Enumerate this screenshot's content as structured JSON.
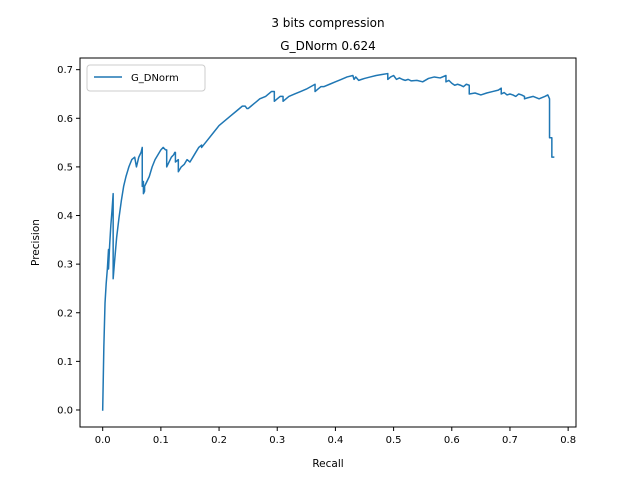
{
  "chart_data": {
    "type": "line",
    "title": [
      "3 bits compression",
      "G_DNorm 0.624"
    ],
    "xlabel": "Recall",
    "ylabel": "Precision",
    "xlim": [
      -0.039,
      0.8135
    ],
    "ylim": [
      -0.035,
      0.724
    ],
    "xticks": [
      0.0,
      0.1,
      0.2,
      0.3,
      0.4,
      0.5,
      0.6,
      0.7,
      0.8
    ],
    "xtick_labels": [
      "0.0",
      "0.1",
      "0.2",
      "0.3",
      "0.4",
      "0.5",
      "0.6",
      "0.7",
      "0.8"
    ],
    "yticks": [
      0.0,
      0.1,
      0.2,
      0.3,
      0.4,
      0.5,
      0.6,
      0.7
    ],
    "ytick_labels": [
      "0.0",
      "0.1",
      "0.2",
      "0.3",
      "0.4",
      "0.5",
      "0.6",
      "0.7"
    ],
    "grid": false,
    "legend": {
      "placement": "top-left",
      "entries": [
        "G_DNorm"
      ]
    },
    "series": [
      {
        "name": "G_DNorm",
        "color": "#1f77b4",
        "x": [
          0.0,
          0.002,
          0.004,
          0.006,
          0.008,
          0.01,
          0.01,
          0.012,
          0.014,
          0.016,
          0.018,
          0.018,
          0.02,
          0.024,
          0.028,
          0.032,
          0.036,
          0.04,
          0.045,
          0.05,
          0.055,
          0.058,
          0.06,
          0.062,
          0.064,
          0.066,
          0.068,
          0.068,
          0.07,
          0.07,
          0.072,
          0.072,
          0.076,
          0.08,
          0.085,
          0.09,
          0.095,
          0.1,
          0.104,
          0.108,
          0.11,
          0.11,
          0.114,
          0.118,
          0.122,
          0.124,
          0.125,
          0.125,
          0.13,
          0.13,
          0.135,
          0.14,
          0.145,
          0.15,
          0.155,
          0.16,
          0.165,
          0.17,
          0.17,
          0.18,
          0.19,
          0.2,
          0.21,
          0.22,
          0.23,
          0.24,
          0.245,
          0.248,
          0.25,
          0.255,
          0.26,
          0.265,
          0.27,
          0.28,
          0.29,
          0.295,
          0.295,
          0.3,
          0.305,
          0.31,
          0.31,
          0.32,
          0.33,
          0.34,
          0.35,
          0.365,
          0.365,
          0.37,
          0.375,
          0.38,
          0.39,
          0.4,
          0.41,
          0.42,
          0.43,
          0.432,
          0.435,
          0.44,
          0.445,
          0.45,
          0.46,
          0.47,
          0.48,
          0.49,
          0.49,
          0.495,
          0.5,
          0.505,
          0.51,
          0.515,
          0.52,
          0.525,
          0.53,
          0.54,
          0.55,
          0.56,
          0.57,
          0.58,
          0.59,
          0.59,
          0.595,
          0.6,
          0.605,
          0.61,
          0.615,
          0.62,
          0.625,
          0.63,
          0.63,
          0.64,
          0.65,
          0.66,
          0.67,
          0.68,
          0.685,
          0.685,
          0.69,
          0.695,
          0.7,
          0.705,
          0.71,
          0.715,
          0.72,
          0.725,
          0.725,
          0.73,
          0.74,
          0.75,
          0.76,
          0.765,
          0.768,
          0.768,
          0.772,
          0.772,
          0.775
        ],
        "y": [
          0.0,
          0.13,
          0.22,
          0.26,
          0.29,
          0.33,
          0.29,
          0.34,
          0.38,
          0.41,
          0.445,
          0.27,
          0.3,
          0.355,
          0.395,
          0.43,
          0.46,
          0.48,
          0.5,
          0.515,
          0.52,
          0.5,
          0.51,
          0.52,
          0.525,
          0.53,
          0.54,
          0.46,
          0.47,
          0.445,
          0.45,
          0.46,
          0.47,
          0.48,
          0.5,
          0.515,
          0.525,
          0.535,
          0.54,
          0.535,
          0.535,
          0.5,
          0.51,
          0.52,
          0.525,
          0.53,
          0.53,
          0.51,
          0.515,
          0.49,
          0.5,
          0.505,
          0.515,
          0.51,
          0.52,
          0.53,
          0.54,
          0.545,
          0.54,
          0.555,
          0.57,
          0.585,
          0.595,
          0.605,
          0.615,
          0.625,
          0.625,
          0.62,
          0.62,
          0.625,
          0.63,
          0.635,
          0.64,
          0.645,
          0.655,
          0.655,
          0.635,
          0.64,
          0.645,
          0.645,
          0.635,
          0.645,
          0.65,
          0.655,
          0.66,
          0.67,
          0.655,
          0.66,
          0.665,
          0.665,
          0.67,
          0.675,
          0.68,
          0.685,
          0.688,
          0.68,
          0.685,
          0.678,
          0.68,
          0.682,
          0.685,
          0.688,
          0.69,
          0.692,
          0.68,
          0.685,
          0.688,
          0.68,
          0.683,
          0.68,
          0.678,
          0.68,
          0.677,
          0.678,
          0.675,
          0.682,
          0.685,
          0.683,
          0.688,
          0.675,
          0.678,
          0.672,
          0.668,
          0.67,
          0.668,
          0.665,
          0.67,
          0.668,
          0.65,
          0.652,
          0.648,
          0.652,
          0.655,
          0.658,
          0.662,
          0.65,
          0.653,
          0.648,
          0.65,
          0.648,
          0.645,
          0.65,
          0.648,
          0.645,
          0.64,
          0.642,
          0.645,
          0.64,
          0.645,
          0.648,
          0.64,
          0.56,
          0.56,
          0.52,
          0.52
        ]
      }
    ]
  }
}
